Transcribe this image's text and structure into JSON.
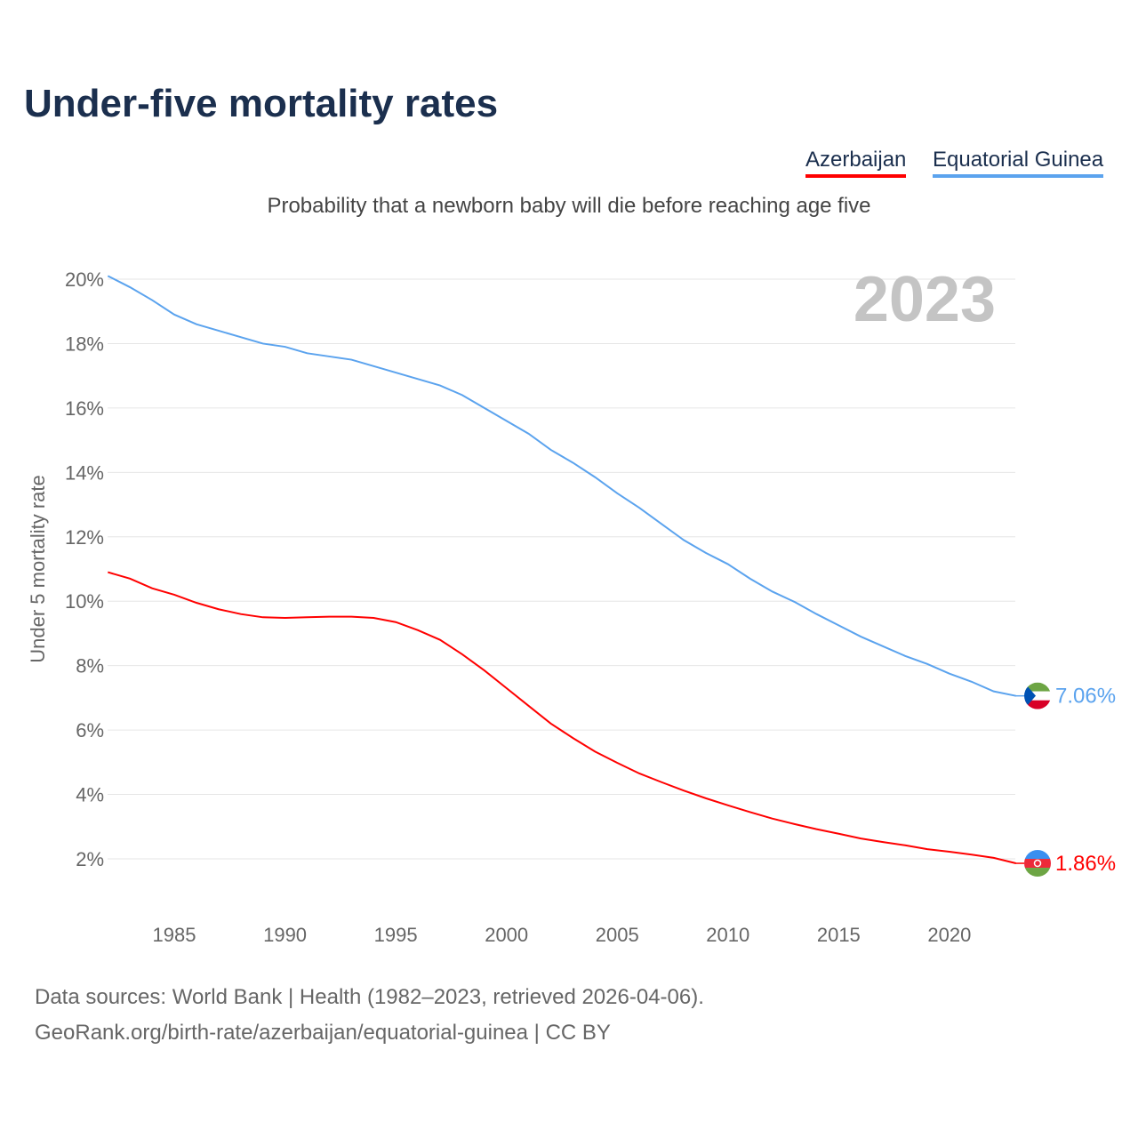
{
  "chart_data": {
    "type": "line",
    "title": "Under-five mortality rates",
    "subtitle": "Probability that a newborn baby will die before reaching age five",
    "ylabel": "Under 5 mortality rate",
    "xlabel": "",
    "year_label": "2023",
    "ylim": [
      0.8,
      20.8
    ],
    "xlim": [
      1982,
      2023
    ],
    "yticks": [
      2,
      4,
      6,
      8,
      10,
      12,
      14,
      16,
      18,
      20
    ],
    "ytick_labels": [
      "2%",
      "4%",
      "6%",
      "8%",
      "10%",
      "12%",
      "14%",
      "16%",
      "18%",
      "20%"
    ],
    "xticks": [
      1985,
      1990,
      1995,
      2000,
      2005,
      2010,
      2015,
      2020
    ],
    "xtick_labels": [
      "1985",
      "1990",
      "1995",
      "2000",
      "2005",
      "2010",
      "2015",
      "2020"
    ],
    "grid": true,
    "legend_position": "top-right",
    "x": [
      1982,
      1983,
      1984,
      1985,
      1986,
      1987,
      1988,
      1989,
      1990,
      1991,
      1992,
      1993,
      1994,
      1995,
      1996,
      1997,
      1998,
      1999,
      2000,
      2001,
      2002,
      2003,
      2004,
      2005,
      2006,
      2007,
      2008,
      2009,
      2010,
      2011,
      2012,
      2013,
      2014,
      2015,
      2016,
      2017,
      2018,
      2019,
      2020,
      2021,
      2022,
      2023
    ],
    "series": [
      {
        "name": "Azerbaijan",
        "color": "#ff0000",
        "end_label": "1.86%",
        "values": [
          10.9,
          10.7,
          10.4,
          10.2,
          9.95,
          9.75,
          9.6,
          9.5,
          9.48,
          9.5,
          9.52,
          9.52,
          9.48,
          9.35,
          9.1,
          8.8,
          8.35,
          7.85,
          7.3,
          6.75,
          6.2,
          5.75,
          5.33,
          4.98,
          4.65,
          4.38,
          4.12,
          3.88,
          3.66,
          3.45,
          3.25,
          3.08,
          2.92,
          2.78,
          2.63,
          2.52,
          2.42,
          2.3,
          2.22,
          2.13,
          2.03,
          1.86
        ]
      },
      {
        "name": "Equatorial Guinea",
        "color": "#5ba3ee",
        "end_label": "7.06%",
        "values": [
          20.1,
          19.75,
          19.35,
          18.9,
          18.6,
          18.4,
          18.2,
          18.0,
          17.9,
          17.7,
          17.6,
          17.5,
          17.3,
          17.1,
          16.9,
          16.7,
          16.4,
          16.0,
          15.6,
          15.2,
          14.7,
          14.3,
          13.85,
          13.35,
          12.9,
          12.4,
          11.9,
          11.5,
          11.15,
          10.7,
          10.3,
          9.98,
          9.6,
          9.25,
          8.9,
          8.6,
          8.3,
          8.05,
          7.75,
          7.5,
          7.2,
          7.06
        ]
      }
    ]
  },
  "footer": {
    "line1": "Data sources: World Bank | Health (1982–2023, retrieved 2026-04-06).",
    "line2": "GeoRank.org/birth-rate/azerbaijan/equatorial-guinea | CC BY"
  }
}
